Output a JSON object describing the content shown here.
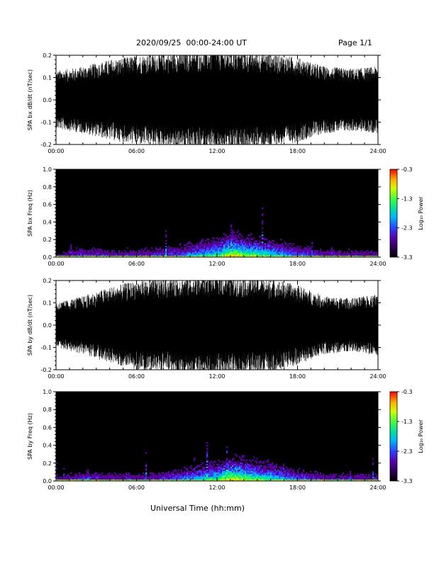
{
  "header": {
    "title": "2020/09/25  00:00-24:00 UT",
    "page": "Page 1/1"
  },
  "footer": {
    "xlabel": "Universal Time (hh:mm)"
  },
  "colors": {
    "trace": "#000000",
    "spectrogram_background": "#000000",
    "colormap": [
      "#000000",
      "#1a0033",
      "#5a00a0",
      "#3c3cff",
      "#00b4ff",
      "#00e0a0",
      "#40ff40",
      "#c8ff00",
      "#ffd000",
      "#ff6a00",
      "#ff0000"
    ]
  },
  "chart_data": [
    {
      "id": "bx-timeseries",
      "type": "line",
      "ylabel": "SPA bx dB/dt (nT/sec)",
      "ylim": [
        -0.2,
        0.2
      ],
      "yticks": [
        "0.2",
        "0.1",
        "0.0",
        "-0.1",
        "-0.2"
      ],
      "xticks": [
        "00:00",
        "06:00",
        "12:00",
        "18:00",
        "24:00"
      ],
      "xlim_hours": [
        0,
        24
      ],
      "envelope": {
        "hours": [
          0,
          2,
          4,
          6,
          8,
          10,
          12,
          14,
          16,
          18,
          20,
          22,
          24
        ],
        "amplitude": [
          0.13,
          0.15,
          0.18,
          0.2,
          0.21,
          0.22,
          0.23,
          0.22,
          0.21,
          0.19,
          0.15,
          0.14,
          0.15
        ]
      }
    },
    {
      "id": "bx-spectrogram",
      "type": "heatmap",
      "ylabel": "SPA bx Freq (Hz)",
      "ylim": [
        0.0,
        1.0
      ],
      "yticks": [
        "1.0",
        "0.8",
        "0.6",
        "0.4",
        "0.2",
        "0.0"
      ],
      "xticks": [
        "00:00",
        "06:00",
        "12:00",
        "18:00",
        "24:00"
      ],
      "xlim_hours": [
        0,
        24
      ],
      "colorbar": {
        "label": "Log₁₀ Power",
        "range": [
          -3.3,
          -0.3
        ],
        "ticks": [
          "-0.3",
          "-1.3",
          "-2.3",
          "-3.3"
        ]
      },
      "activity": {
        "hours": [
          0,
          2,
          4,
          6,
          8,
          10,
          12,
          13,
          14,
          16,
          18,
          20,
          22,
          24
        ],
        "level": [
          0.25,
          0.35,
          0.3,
          0.3,
          0.35,
          0.45,
          0.6,
          0.8,
          0.7,
          0.55,
          0.4,
          0.3,
          0.3,
          0.3
        ]
      }
    },
    {
      "id": "by-timeseries",
      "type": "line",
      "ylabel": "SPA by dB/dt (nT/sec)",
      "ylim": [
        -0.2,
        0.2
      ],
      "yticks": [
        "0.2",
        "0.1",
        "0.0",
        "-0.1",
        "-0.2"
      ],
      "xticks": [
        "00:00",
        "06:00",
        "12:00",
        "18:00",
        "24:00"
      ],
      "xlim_hours": [
        0,
        24
      ],
      "envelope": {
        "hours": [
          0,
          2,
          4,
          6,
          8,
          10,
          12,
          14,
          16,
          18,
          20,
          22,
          24
        ],
        "amplitude": [
          0.1,
          0.13,
          0.17,
          0.2,
          0.21,
          0.22,
          0.23,
          0.22,
          0.21,
          0.18,
          0.13,
          0.12,
          0.14
        ]
      }
    },
    {
      "id": "by-spectrogram",
      "type": "heatmap",
      "ylabel": "SPA by Freq (Hz)",
      "ylim": [
        0.0,
        1.0
      ],
      "yticks": [
        "1.0",
        "0.8",
        "0.6",
        "0.4",
        "0.2",
        "0.0"
      ],
      "xticks": [
        "00:00",
        "06:00",
        "12:00",
        "18:00",
        "24:00"
      ],
      "xlim_hours": [
        0,
        24
      ],
      "colorbar": {
        "label": "Log₁₀ Power",
        "range": [
          -3.3,
          -0.3
        ],
        "ticks": [
          "-0.3",
          "-1.3",
          "-2.3",
          "-3.3"
        ]
      },
      "activity": {
        "hours": [
          0,
          2,
          4,
          6,
          8,
          10,
          12,
          13,
          14,
          16,
          18,
          20,
          22,
          24
        ],
        "level": [
          0.25,
          0.35,
          0.3,
          0.3,
          0.35,
          0.45,
          0.6,
          0.8,
          0.7,
          0.55,
          0.4,
          0.3,
          0.3,
          0.3
        ]
      }
    }
  ]
}
